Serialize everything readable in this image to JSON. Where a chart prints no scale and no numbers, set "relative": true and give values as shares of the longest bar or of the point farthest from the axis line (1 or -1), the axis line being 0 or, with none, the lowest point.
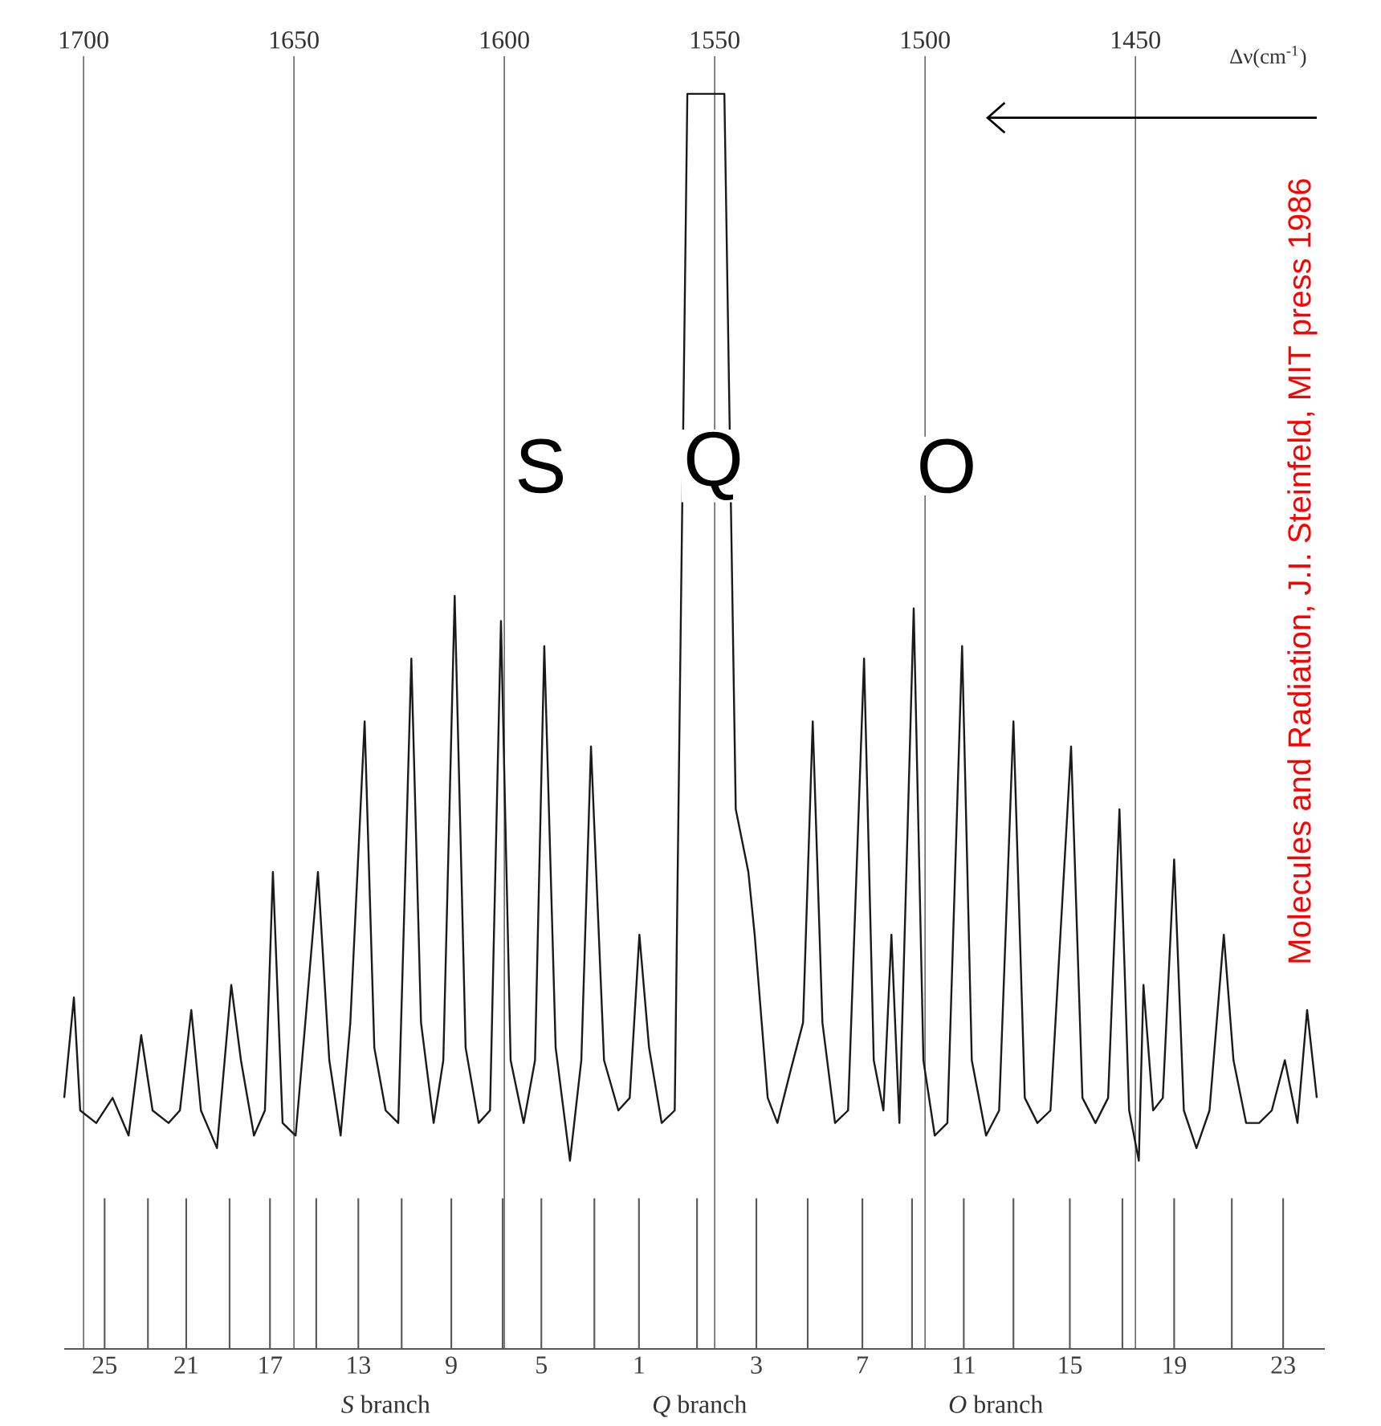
{
  "chart_data": {
    "type": "line",
    "relative": true,
    "xlim": [
      1704.6,
      1405.0
    ],
    "xticks": [
      1700,
      1650,
      1600,
      1550,
      1500,
      1450
    ],
    "xlabel": "Δν(cm$^{-1}$)",
    "grid": "x",
    "marker": "none",
    "line_style": "solid",
    "series": [
      {
        "color": "#1a1a1a",
        "x": [
          1704.6,
          1702.3,
          1700.8,
          1697.0,
          1693.1,
          1689.3,
          1686.3,
          1683.6,
          1679.8,
          1677.1,
          1674.4,
          1672.1,
          1668.3,
          1664.9,
          1662.6,
          1659.5,
          1656.9,
          1655.0,
          1652.7,
          1649.6,
          1647.3,
          1644.3,
          1641.6,
          1638.9,
          1636.6,
          1633.2,
          1630.9,
          1628.2,
          1625.2,
          1622.1,
          1619.8,
          1616.8,
          1614.5,
          1611.8,
          1609.2,
          1606.1,
          1603.4,
          1600.8,
          1598.5,
          1595.4,
          1592.7,
          1590.5,
          1587.8,
          1584.4,
          1581.7,
          1579.4,
          1576.3,
          1572.9,
          1570.2,
          1567.9,
          1565.6,
          1562.6,
          1559.5,
          1556.5,
          1547.7,
          1545.0,
          1542.0,
          1540.5,
          1537.4,
          1535.1,
          1532.1,
          1529.0,
          1526.7,
          1524.4,
          1521.4,
          1518.3,
          1514.5,
          1512.2,
          1509.9,
          1508.0,
          1506.1,
          1502.7,
          1500.4,
          1497.7,
          1494.7,
          1491.2,
          1488.9,
          1485.5,
          1482.4,
          1479.0,
          1476.3,
          1473.3,
          1470.2,
          1465.3,
          1462.6,
          1459.5,
          1456.5,
          1453.8,
          1451.5,
          1449.2,
          1448.1,
          1445.8,
          1443.5,
          1440.8,
          1438.5,
          1435.5,
          1432.4,
          1429.0,
          1426.7,
          1423.7,
          1420.6,
          1417.6,
          1414.5,
          1411.5,
          1409.2,
          1406.9
        ],
        "values": [
          0.2,
          0.28,
          0.19,
          0.18,
          0.2,
          0.17,
          0.25,
          0.19,
          0.18,
          0.19,
          0.27,
          0.19,
          0.16,
          0.29,
          0.23,
          0.17,
          0.19,
          0.38,
          0.18,
          0.17,
          0.26,
          0.38,
          0.23,
          0.17,
          0.26,
          0.5,
          0.24,
          0.19,
          0.18,
          0.55,
          0.26,
          0.18,
          0.23,
          0.6,
          0.24,
          0.18,
          0.19,
          0.58,
          0.23,
          0.18,
          0.23,
          0.56,
          0.24,
          0.15,
          0.23,
          0.48,
          0.23,
          0.19,
          0.2,
          0.33,
          0.24,
          0.18,
          0.19,
          1.0,
          1.0,
          0.43,
          0.38,
          0.33,
          0.2,
          0.18,
          0.22,
          0.26,
          0.5,
          0.26,
          0.18,
          0.19,
          0.55,
          0.23,
          0.19,
          0.33,
          0.18,
          0.59,
          0.23,
          0.17,
          0.18,
          0.56,
          0.23,
          0.17,
          0.19,
          0.5,
          0.2,
          0.18,
          0.19,
          0.48,
          0.2,
          0.18,
          0.2,
          0.43,
          0.19,
          0.15,
          0.29,
          0.19,
          0.2,
          0.39,
          0.19,
          0.16,
          0.19,
          0.33,
          0.23,
          0.18,
          0.18,
          0.19,
          0.23,
          0.18,
          0.27,
          0.2
        ]
      }
    ],
    "ref_lines": [
      {
        "axis": "x",
        "value": 1695.0
      },
      {
        "axis": "x",
        "value": 1684.7
      },
      {
        "axis": "x",
        "value": 1675.6
      },
      {
        "axis": "x",
        "value": 1665.3
      },
      {
        "axis": "x",
        "value": 1655.7
      },
      {
        "axis": "x",
        "value": 1644.7
      },
      {
        "axis": "x",
        "value": 1634.7
      },
      {
        "axis": "x",
        "value": 1624.4
      },
      {
        "axis": "x",
        "value": 1612.6
      },
      {
        "axis": "x",
        "value": 1600.4
      },
      {
        "axis": "x",
        "value": 1591.2
      },
      {
        "axis": "x",
        "value": 1578.6
      },
      {
        "axis": "x",
        "value": 1568.0
      },
      {
        "axis": "x",
        "value": 1554.2
      },
      {
        "axis": "x",
        "value": 1540.1
      },
      {
        "axis": "x",
        "value": 1527.9
      },
      {
        "axis": "x",
        "value": 1514.9
      },
      {
        "axis": "x",
        "value": 1503.1
      },
      {
        "axis": "x",
        "value": 1490.8
      },
      {
        "axis": "x",
        "value": 1479.0
      },
      {
        "axis": "x",
        "value": 1465.6
      },
      {
        "axis": "x",
        "value": 1453.1
      },
      {
        "axis": "x",
        "value": 1440.8
      },
      {
        "axis": "x",
        "value": 1427.1
      },
      {
        "axis": "x",
        "value": 1414.9
      }
    ],
    "annotations": [
      "S",
      "Q",
      "O",
      "*S* branch",
      "*Q* branch",
      "*O* branch",
      "Molecules and Radiation, J.I. Steinfeld, MIT press 1986",
      {
        "text": "25",
        "x": 1695.0,
        "y": 0
      },
      {
        "text": "21",
        "x": 1675.6,
        "y": 0
      },
      {
        "text": "17",
        "x": 1655.7,
        "y": 0
      },
      {
        "text": "13",
        "x": 1634.7,
        "y": 0
      },
      {
        "text": "9",
        "x": 1612.6,
        "y": 0
      },
      {
        "text": "5",
        "x": 1591.2,
        "y": 0
      },
      {
        "text": "1",
        "x": 1568.0,
        "y": 0
      },
      {
        "text": "3",
        "x": 1540.1,
        "y": 0
      },
      {
        "text": "7",
        "x": 1514.9,
        "y": 0
      },
      {
        "text": "11",
        "x": 1490.8,
        "y": 0
      },
      {
        "text": "15",
        "x": 1465.6,
        "y": 0
      },
      {
        "text": "19",
        "x": 1440.8,
        "y": 0
      },
      {
        "text": "23",
        "x": 1414.9,
        "y": 0
      }
    ]
  }
}
